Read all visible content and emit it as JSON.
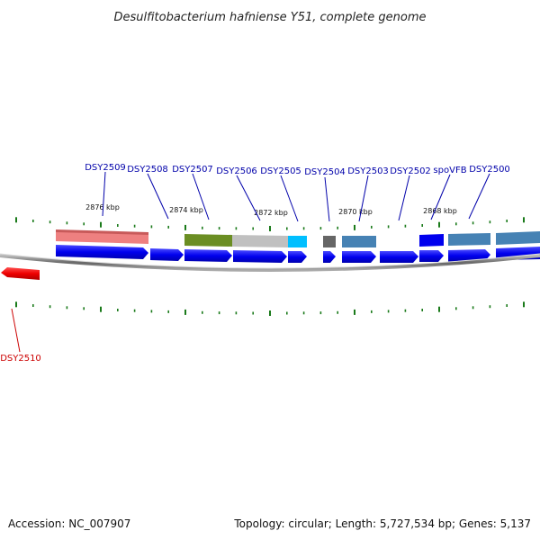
{
  "title": "Desulfitobacterium hafniense Y51, complete genome",
  "footer": {
    "accession": "Accession: NC_007907",
    "summary": "Topology: circular; Length: 5,727,534 bp; Genes: 5,137"
  },
  "colors": {
    "forward_cds": "#0000ee",
    "reverse_cds": "#ee0000",
    "label_forward": "#0000aa",
    "label_reverse": "#cc0000",
    "tick": "#1a7a1a",
    "backbone": "#888888"
  },
  "kbp_labels": [
    "2876 kbp",
    "2874 kbp",
    "2872 kbp",
    "2870 kbp",
    "2868 kbp"
  ],
  "genes_forward": [
    {
      "label": "DSY2509"
    },
    {
      "label": "DSY2508"
    },
    {
      "label": "DSY2507"
    },
    {
      "label": "DSY2506"
    },
    {
      "label": "DSY2505"
    },
    {
      "label": "DSY2504"
    },
    {
      "label": "DSY2503"
    },
    {
      "label": "DSY2502"
    },
    {
      "label": "spoVFB"
    },
    {
      "label": "DSY2500"
    }
  ],
  "genes_reverse": [
    {
      "label": "DSY2510"
    }
  ],
  "cog_colors": [
    "#e86a6a",
    "#6b8e23",
    "#bdbdbd",
    "#00bfff",
    "#666666",
    "#4682b4",
    "#0000ee",
    "#4682b4",
    "#4682b4"
  ]
}
